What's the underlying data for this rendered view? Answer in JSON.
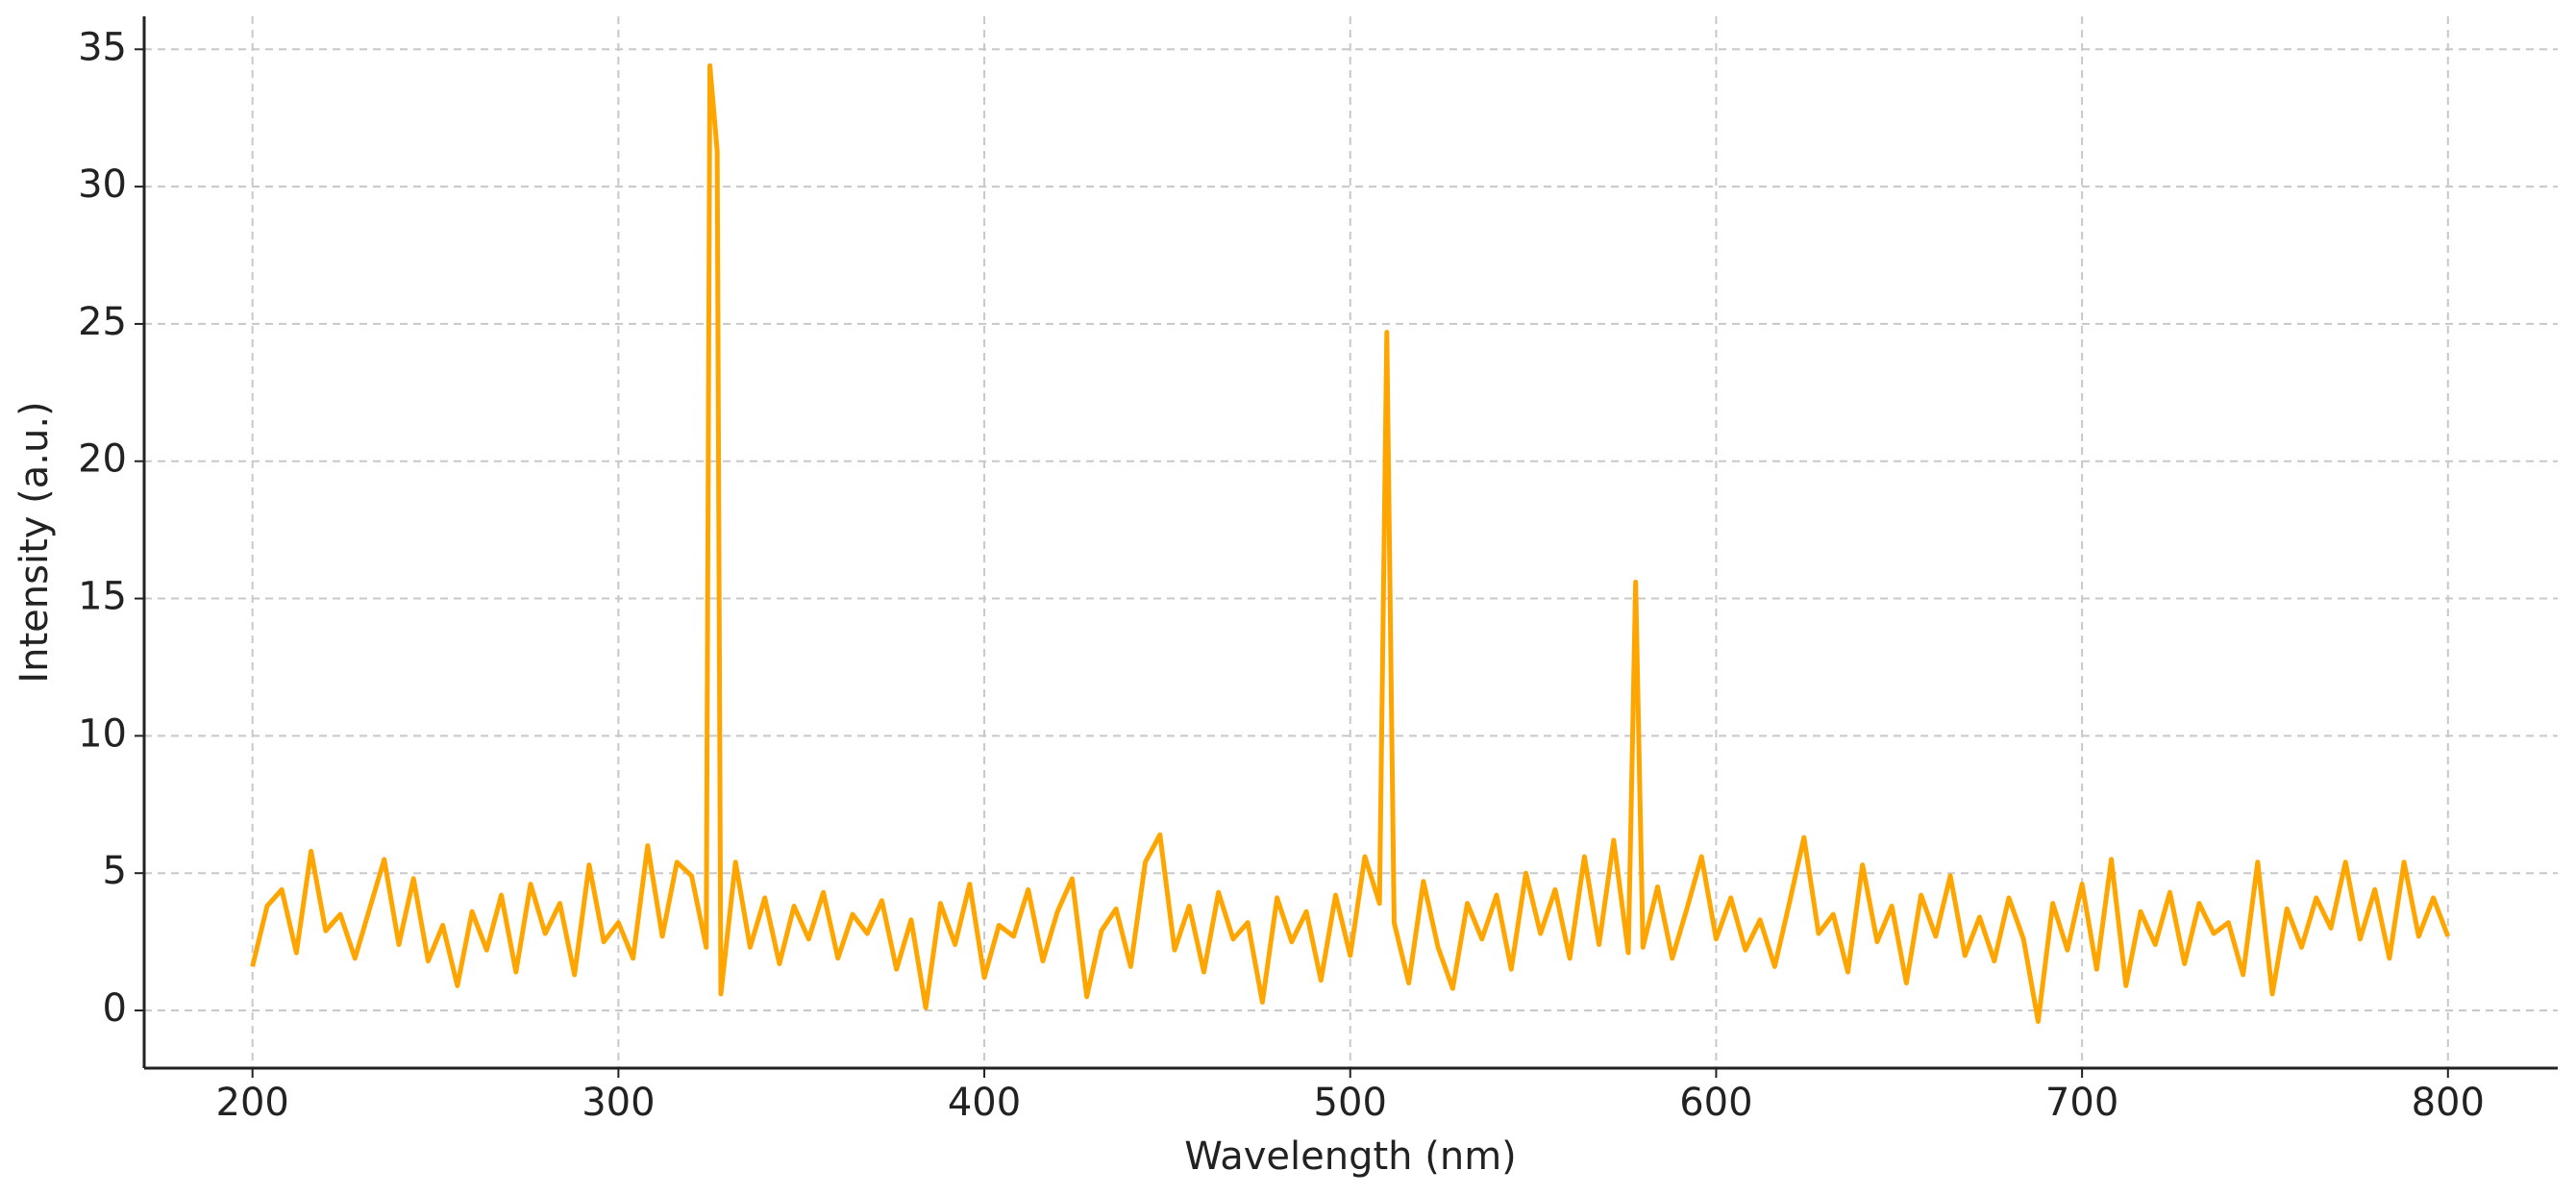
{
  "chart_data": {
    "type": "line",
    "xlabel": "Wavelength (nm)",
    "ylabel": "Intensity (a.u.)",
    "x": [
      200,
      204,
      208,
      212,
      216,
      220,
      224,
      228,
      232,
      236,
      240,
      244,
      248,
      252,
      256,
      260,
      264,
      268,
      272,
      276,
      280,
      284,
      288,
      292,
      296,
      300,
      304,
      308,
      312,
      316,
      320,
      324,
      325,
      327,
      328,
      332,
      336,
      340,
      344,
      348,
      352,
      356,
      360,
      364,
      368,
      372,
      376,
      380,
      384,
      388,
      392,
      396,
      400,
      404,
      408,
      412,
      416,
      420,
      424,
      428,
      432,
      436,
      440,
      444,
      448,
      452,
      456,
      460,
      464,
      468,
      472,
      476,
      480,
      484,
      488,
      492,
      496,
      500,
      504,
      508,
      510,
      512,
      516,
      520,
      524,
      528,
      532,
      536,
      540,
      544,
      548,
      552,
      556,
      560,
      564,
      568,
      572,
      576,
      578,
      580,
      584,
      588,
      592,
      596,
      600,
      604,
      608,
      612,
      616,
      620,
      624,
      628,
      632,
      636,
      640,
      644,
      648,
      652,
      656,
      660,
      664,
      668,
      672,
      676,
      680,
      684,
      688,
      692,
      696,
      700,
      704,
      708,
      712,
      716,
      720,
      724,
      728,
      732,
      736,
      740,
      744,
      748,
      752,
      756,
      760,
      764,
      768,
      772,
      776,
      780,
      784,
      788,
      792,
      796,
      800
    ],
    "values": [
      1.6,
      3.8,
      4.4,
      2.1,
      5.8,
      2.9,
      3.5,
      1.9,
      3.7,
      5.5,
      2.4,
      4.8,
      1.8,
      3.1,
      0.9,
      3.6,
      2.2,
      4.2,
      1.4,
      4.6,
      2.8,
      3.9,
      1.3,
      5.3,
      2.5,
      3.2,
      1.9,
      6.0,
      2.7,
      5.4,
      4.9,
      2.3,
      34.4,
      31.3,
      0.6,
      5.4,
      2.3,
      4.1,
      1.7,
      3.8,
      2.6,
      4.3,
      1.9,
      3.5,
      2.8,
      4.0,
      1.5,
      3.3,
      0.1,
      3.9,
      2.4,
      4.6,
      1.2,
      3.1,
      2.7,
      4.4,
      1.8,
      3.6,
      4.8,
      0.5,
      2.9,
      3.7,
      1.6,
      5.4,
      6.4,
      2.2,
      3.8,
      1.4,
      4.3,
      2.6,
      3.2,
      0.3,
      4.1,
      2.5,
      3.6,
      1.1,
      4.2,
      2.0,
      5.6,
      3.9,
      24.7,
      3.2,
      1.0,
      4.7,
      2.3,
      0.8,
      3.9,
      2.6,
      4.2,
      1.5,
      5.0,
      2.8,
      4.4,
      1.9,
      5.6,
      2.4,
      6.2,
      2.1,
      15.6,
      2.3,
      4.5,
      1.9,
      3.7,
      5.6,
      2.6,
      4.1,
      2.2,
      3.3,
      1.6,
      3.9,
      6.3,
      2.8,
      3.5,
      1.4,
      5.3,
      2.5,
      3.8,
      1.0,
      4.2,
      2.7,
      4.9,
      2.0,
      3.4,
      1.8,
      4.1,
      2.6,
      -0.4,
      3.9,
      2.2,
      4.6,
      1.5,
      5.5,
      0.9,
      3.6,
      2.4,
      4.3,
      1.7,
      3.9,
      2.8,
      3.2,
      1.3,
      5.4,
      0.6,
      3.7,
      2.3,
      4.1,
      3.0,
      5.4,
      2.6,
      4.4,
      1.9,
      5.4,
      2.7,
      4.1,
      2.7
    ],
    "color": "#ffa500",
    "xlim": [
      170.4,
      830
    ],
    "ylim": [
      -2.1,
      36.2
    ],
    "xticks": [
      200,
      300,
      400,
      500,
      600,
      700,
      800
    ],
    "yticks": [
      0,
      5,
      10,
      15,
      20,
      25,
      30,
      35
    ],
    "grid": true
  }
}
